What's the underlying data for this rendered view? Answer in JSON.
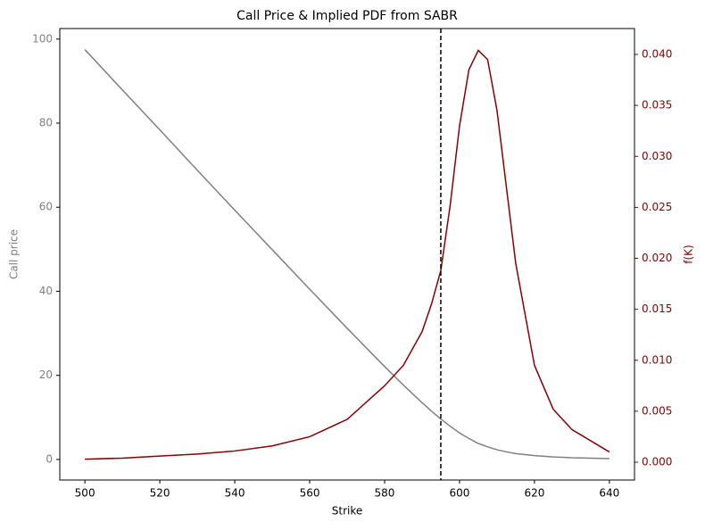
{
  "chart_data": {
    "type": "line",
    "title": "Call Price & Implied PDF from SABR",
    "xlabel": "Strike",
    "ylabel": "Call price",
    "y2label": "f(K)",
    "x": [
      500,
      510,
      520,
      530,
      540,
      550,
      560,
      570,
      580,
      585,
      590,
      592.5,
      595,
      597.5,
      600,
      602.5,
      605,
      607.5,
      610,
      612.5,
      615,
      620,
      625,
      630,
      640
    ],
    "series": [
      {
        "name": "Call price",
        "color": "#808080",
        "axis": "y",
        "values": [
          97.5,
          87.9,
          78.4,
          68.8,
          59.3,
          49.9,
          40.5,
          31.2,
          22.1,
          17.7,
          13.5,
          11.5,
          9.6,
          7.9,
          6.3,
          5.0,
          3.8,
          3.0,
          2.3,
          1.8,
          1.4,
          0.9,
          0.6,
          0.4,
          0.2
        ]
      },
      {
        "name": "f(K)",
        "color": "#8b0000",
        "axis": "y2",
        "values": [
          0.0003,
          0.0004,
          0.0006,
          0.0008,
          0.0011,
          0.0016,
          0.0025,
          0.0042,
          0.0075,
          0.0095,
          0.0128,
          0.0155,
          0.0188,
          0.0252,
          0.033,
          0.0385,
          0.0404,
          0.0395,
          0.0345,
          0.027,
          0.0195,
          0.0095,
          0.0052,
          0.0032,
          0.001
        ]
      }
    ],
    "vline": 595,
    "xlim": [
      493.3,
      646.7
    ],
    "xticks": [
      500,
      520,
      540,
      560,
      580,
      600,
      620,
      640
    ],
    "ylim": [
      -4.9,
      102.5
    ],
    "yticks": [
      0,
      20,
      40,
      60,
      80,
      100
    ],
    "y2lim": [
      -0.00175,
      0.04254
    ],
    "y2ticks": [
      {
        "value": 0,
        "label": "0.000"
      },
      {
        "value": 0.005,
        "label": "0.005"
      },
      {
        "value": 0.01,
        "label": "0.010"
      },
      {
        "value": 0.015,
        "label": "0.015"
      },
      {
        "value": 0.02,
        "label": "0.020"
      },
      {
        "value": 0.025,
        "label": "0.025"
      },
      {
        "value": 0.03,
        "label": "0.030"
      },
      {
        "value": 0.035,
        "label": "0.035"
      },
      {
        "value": 0.04,
        "label": "0.040"
      }
    ]
  }
}
